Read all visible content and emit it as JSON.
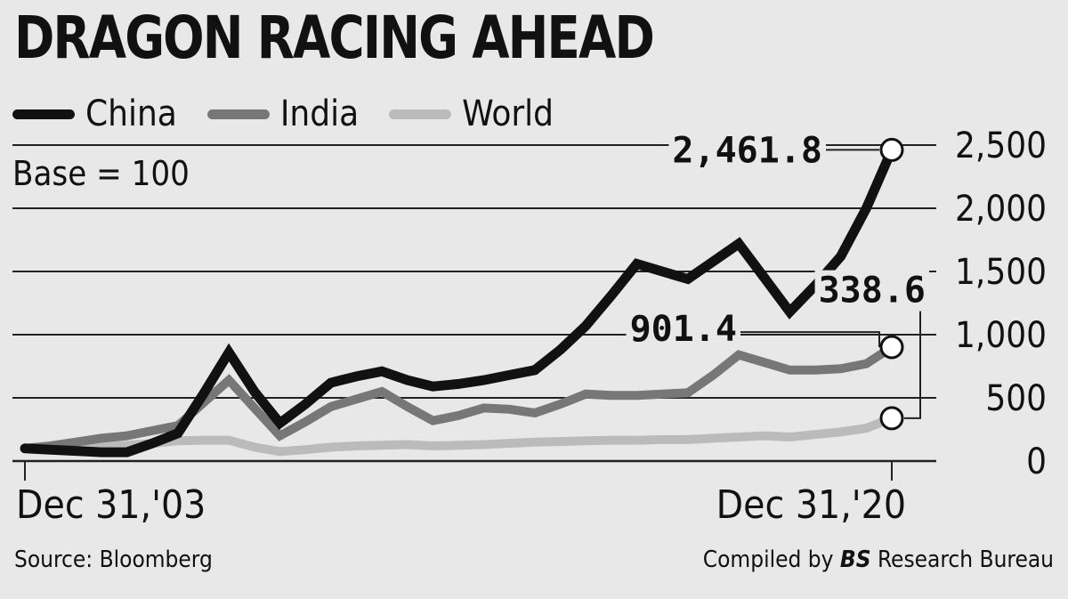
{
  "chart_data": {
    "type": "line",
    "title": "DRAGON RACING AHEAD",
    "note": "Base = 100",
    "x": [
      "Dec 31,'03",
      "2004-06",
      "2004-12",
      "2005-06",
      "2005-12",
      "2006-06",
      "2006-12",
      "2007-06",
      "2007-12",
      "2008-06",
      "2008-12",
      "2009-06",
      "2009-12",
      "2010-06",
      "2010-12",
      "2011-06",
      "2011-12",
      "2012-06",
      "2012-12",
      "2013-06",
      "2013-12",
      "2014-06",
      "2014-12",
      "2015-06",
      "2015-12",
      "2016-06",
      "2016-12",
      "2017-06",
      "2017-12",
      "2018-06",
      "2018-12",
      "2019-06",
      "2019-12",
      "2020-06",
      "Dec 31,'20"
    ],
    "x_tick_labels": [
      "Dec 31,'03",
      "Dec 31,'20"
    ],
    "ylim": [
      0,
      2500
    ],
    "y_ticks": [
      0,
      500,
      1000,
      1500,
      2000,
      2500
    ],
    "y_tick_labels": [
      "0",
      "500",
      "1,000",
      "1,500",
      "2,000",
      "2,500"
    ],
    "grid": true,
    "legend_position": "top-left",
    "series": [
      {
        "name": "China",
        "color": "#111111",
        "values": [
          100,
          90,
          80,
          70,
          70,
          140,
          220,
          530,
          860,
          550,
          300,
          450,
          620,
          670,
          710,
          640,
          590,
          610,
          640,
          680,
          720,
          880,
          1070,
          1310,
          1560,
          1500,
          1440,
          1580,
          1720,
          1450,
          1180,
          1390,
          1620,
          2000,
          2461.8
        ]
      },
      {
        "name": "India",
        "color": "#777777",
        "values": [
          100,
          120,
          150,
          180,
          200,
          240,
          280,
          460,
          640,
          420,
          200,
          310,
          430,
          490,
          550,
          430,
          320,
          360,
          420,
          410,
          380,
          450,
          530,
          520,
          520,
          530,
          540,
          680,
          840,
          780,
          720,
          720,
          730,
          770,
          901.4
        ]
      },
      {
        "name": "World",
        "color": "#bbbbbb",
        "values": [
          100,
          105,
          110,
          115,
          125,
          140,
          160,
          165,
          165,
          110,
          75,
          90,
          110,
          120,
          125,
          130,
          120,
          125,
          130,
          140,
          150,
          155,
          160,
          165,
          165,
          170,
          170,
          180,
          190,
          200,
          190,
          210,
          230,
          260,
          338.6
        ]
      }
    ],
    "annotations": [
      {
        "label": "2,461.8",
        "series": "China"
      },
      {
        "label": "901.4",
        "series": "India"
      },
      {
        "label": "338.6",
        "series": "World"
      }
    ]
  },
  "footer": {
    "source": "Source: Bloomberg",
    "compiled_prefix": "Compiled by ",
    "compiled_italic": "BS",
    "compiled_suffix": " Research Bureau"
  }
}
